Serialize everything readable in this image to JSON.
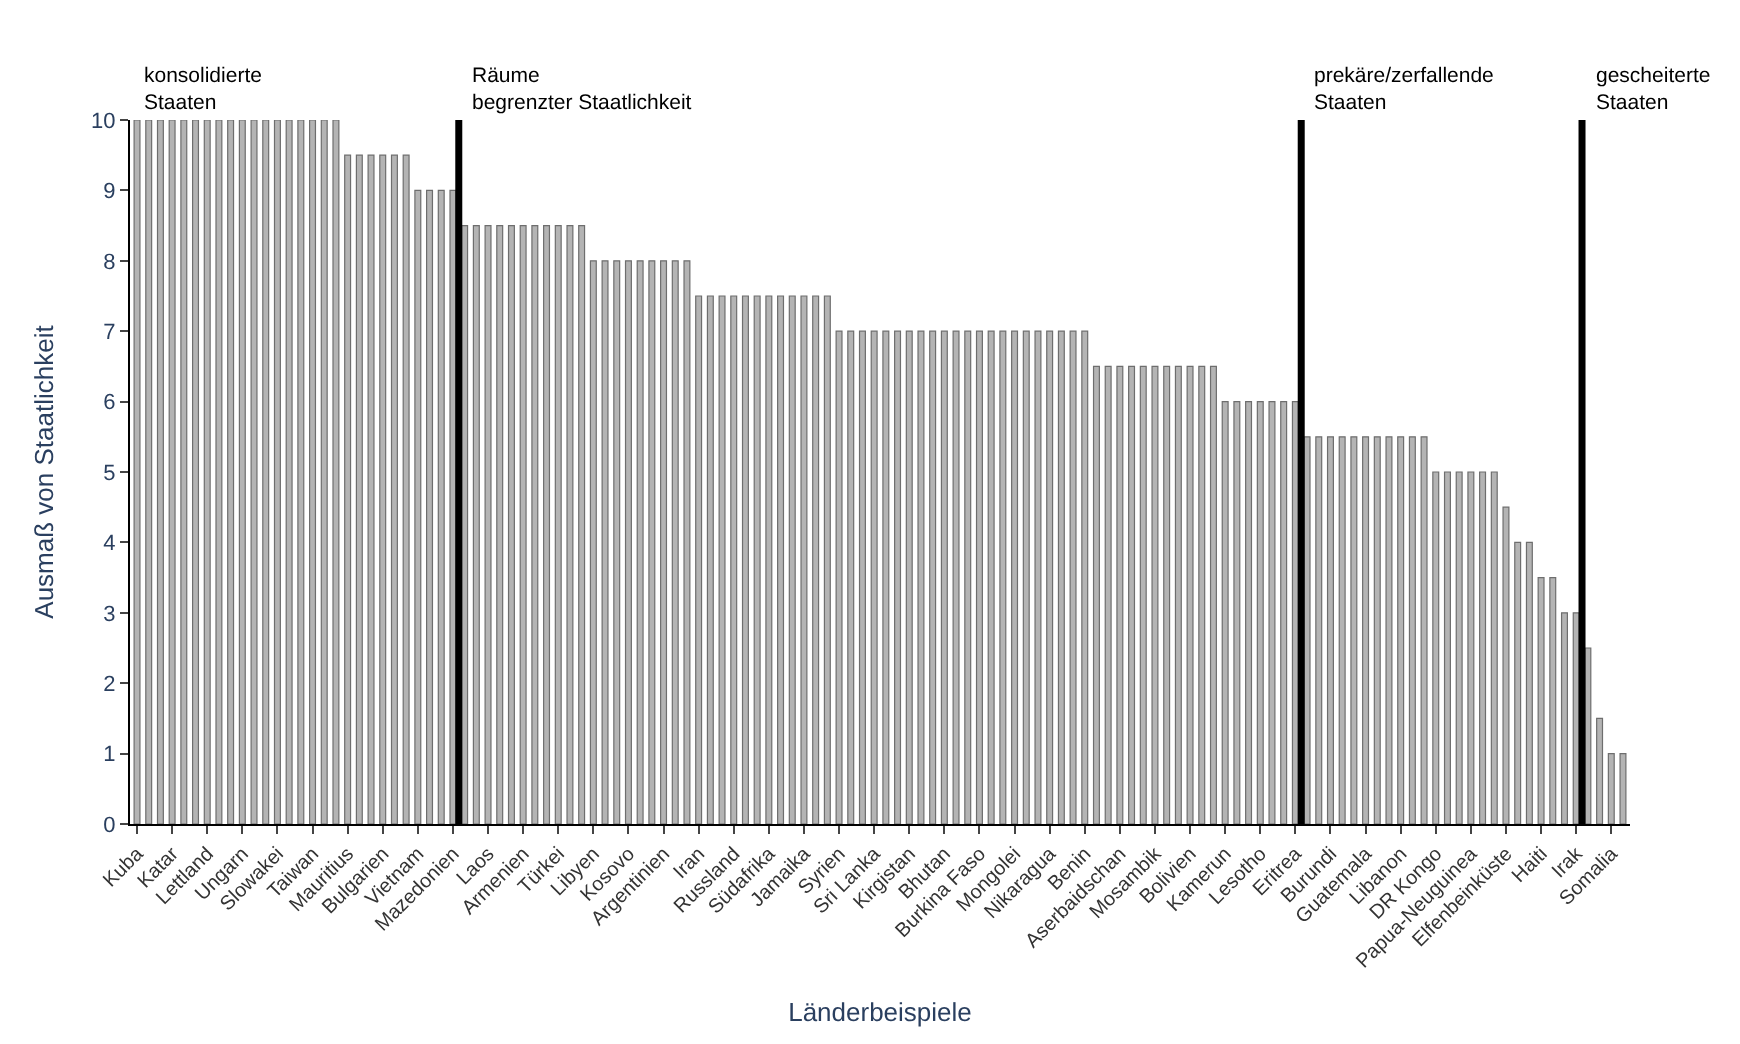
{
  "chart_data": {
    "type": "bar",
    "xlabel": "Länderbeispiele",
    "ylabel": "Ausmaß von Staatlichkeit",
    "categories": [
      "Kuba",
      null,
      null,
      "Katar",
      null,
      null,
      "Lettland",
      null,
      null,
      "Ungarn",
      null,
      null,
      "Slowakei",
      null,
      null,
      "Taiwan",
      null,
      null,
      "Mauritius",
      null,
      null,
      "Bulgarien",
      null,
      null,
      "Vietnam",
      null,
      null,
      "Mazedonien",
      null,
      null,
      "Laos",
      null,
      null,
      "Armenien",
      null,
      null,
      "Türkei",
      null,
      null,
      "Libyen",
      null,
      null,
      "Kosovo",
      null,
      null,
      "Argentinien",
      null,
      null,
      "Iran",
      null,
      null,
      "Russland",
      null,
      null,
      "Südafrika",
      null,
      null,
      "Jamaika",
      null,
      null,
      "Syrien",
      null,
      null,
      "Sri Lanka",
      null,
      null,
      "Kirgistan",
      null,
      null,
      "Bhutan",
      null,
      null,
      "Burkina Faso",
      null,
      null,
      "Mongolei",
      null,
      null,
      "Nikaragua",
      null,
      null,
      "Benin",
      null,
      null,
      "Aserbaidschan",
      null,
      null,
      "Mosambik",
      null,
      null,
      "Bolivien",
      null,
      null,
      "Kamerun",
      null,
      null,
      "Lesotho",
      null,
      null,
      "Eritrea",
      null,
      null,
      "Burundi",
      null,
      null,
      "Guatemala",
      null,
      null,
      "Libanon",
      null,
      null,
      "DR Kongo",
      null,
      null,
      "Papua-Neuguinea",
      null,
      null,
      "Elfenbeinküste",
      null,
      null,
      "Haiti",
      null,
      null,
      "Irak",
      null,
      null,
      "Somalia",
      null
    ],
    "values": [
      10,
      10,
      10,
      10,
      10,
      10,
      10,
      10,
      10,
      10,
      10,
      10,
      10,
      10,
      10,
      10,
      10,
      10,
      9.5,
      9.5,
      9.5,
      9.5,
      9.5,
      9.5,
      9,
      9,
      9,
      9,
      8.5,
      8.5,
      8.5,
      8.5,
      8.5,
      8.5,
      8.5,
      8.5,
      8.5,
      8.5,
      8.5,
      8,
      8,
      8,
      8,
      8,
      8,
      8,
      8,
      8,
      7.5,
      7.5,
      7.5,
      7.5,
      7.5,
      7.5,
      7.5,
      7.5,
      7.5,
      7.5,
      7.5,
      7.5,
      7,
      7,
      7,
      7,
      7,
      7,
      7,
      7,
      7,
      7,
      7,
      7,
      7,
      7,
      7,
      7,
      7,
      7,
      7,
      7,
      7,
      7,
      6.5,
      6.5,
      6.5,
      6.5,
      6.5,
      6.5,
      6.5,
      6.5,
      6.5,
      6.5,
      6.5,
      6,
      6,
      6,
      6,
      6,
      6,
      6,
      5.5,
      5.5,
      5.5,
      5.5,
      5.5,
      5.5,
      5.5,
      5.5,
      5.5,
      5.5,
      5.5,
      5,
      5,
      5,
      5,
      5,
      5,
      4.5,
      4,
      4,
      3.5,
      3.5,
      3,
      3,
      2.5,
      1.5,
      1,
      1
    ],
    "color": "#b4b4b4",
    "ylim": [
      0,
      10
    ],
    "yticks": [
      0,
      1,
      2,
      3,
      4,
      5,
      6,
      7,
      8,
      9,
      10
    ],
    "annotations": [
      "konsolidierte\nStaaten",
      "Räume\nbegrenzter Staatlichkeit",
      "prekäre/zerfallende\nStaaten",
      "gescheiterte\nStaaten"
    ]
  }
}
